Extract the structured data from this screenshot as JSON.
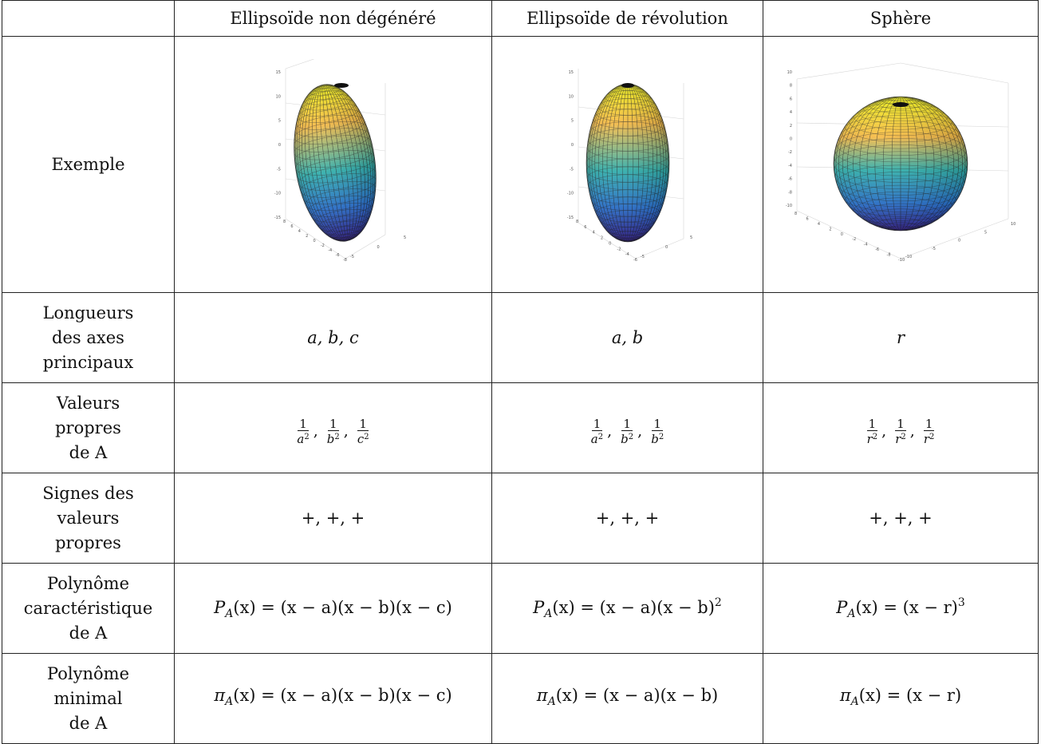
{
  "headers": [
    "",
    "Ellipsoïde non dégénéré",
    "Ellipsoïde de révolution",
    "Sphère"
  ],
  "rows": {
    "exemple": {
      "label": "Exemple"
    },
    "axes": {
      "label": [
        "Longueurs",
        "des axes",
        "principaux"
      ],
      "values": [
        "a, b, c",
        "a, b",
        "r"
      ]
    },
    "valeurs": {
      "label": [
        "Valeurs",
        "propres",
        "de A"
      ],
      "values": [
        {
          "num": [
            "1",
            "1",
            "1"
          ],
          "den_base": [
            "a",
            "b",
            "c"
          ],
          "den_exp": "2"
        },
        {
          "num": [
            "1",
            "1",
            "1"
          ],
          "den_base": [
            "a",
            "b",
            "b"
          ],
          "den_exp": "2"
        },
        {
          "num": [
            "1",
            "1",
            "1"
          ],
          "den_base": [
            "r",
            "r",
            "r"
          ],
          "den_exp": "2"
        }
      ]
    },
    "signes": {
      "label": [
        "Signes des",
        "valeurs",
        "propres"
      ],
      "values": [
        "+, +, +",
        "+, +, +",
        "+, +, +"
      ]
    },
    "caracteristique": {
      "label": [
        "Polynôme",
        "caractéristique",
        "de A"
      ],
      "values": [
        {
          "head": "P",
          "sub": "A",
          "body": "(x) = (x − a)(x − b)(x − c)",
          "sup": ""
        },
        {
          "head": "P",
          "sub": "A",
          "body": "(x) = (x − a)(x − b)",
          "sup": "2"
        },
        {
          "head": "P",
          "sub": "A",
          "body": "(x) = (x − r)",
          "sup": "3"
        }
      ]
    },
    "minimal": {
      "label": [
        "Polynôme",
        "minimal",
        "de A"
      ],
      "values": [
        {
          "head": "π",
          "sub": "A",
          "body": "(x) = (x − a)(x − b)(x − c)"
        },
        {
          "head": "π",
          "sub": "A",
          "body": "(x) = (x − a)(x − b)"
        },
        {
          "head": "π",
          "sub": "A",
          "body": "(x) = (x − r)"
        }
      ]
    }
  },
  "plots": [
    {
      "z_ticks": [
        "15",
        "10",
        "5",
        "0",
        "-5",
        "-10",
        "-15"
      ],
      "x_ticks": [
        "8",
        "6",
        "4",
        "2",
        "0",
        "-2",
        "-4",
        "-6",
        "-8"
      ],
      "y_ticks": [
        "-5",
        "0",
        "5"
      ]
    },
    {
      "z_ticks": [
        "15",
        "10",
        "5",
        "0",
        "-5",
        "-10",
        "-15"
      ],
      "x_ticks": [
        "8",
        "6",
        "4",
        "2",
        "0",
        "-2",
        "-4",
        "-6"
      ],
      "y_ticks": [
        "-5",
        "0",
        "5"
      ]
    },
    {
      "z_ticks": [
        "10",
        "8",
        "6",
        "4",
        "2",
        "0",
        "-2",
        "-4",
        "-6",
        "-8",
        "-10"
      ],
      "x_ticks": [
        "8",
        "6",
        "4",
        "2",
        "0",
        "-2",
        "-4",
        "-6",
        "-8",
        "-10"
      ],
      "y_ticks": [
        "-10",
        "-5",
        "0",
        "5",
        "10"
      ]
    }
  ],
  "colors": {
    "surface_top": "#f9fb0e",
    "surface_mid1": "#f6b73c",
    "surface_mid2": "#29b3b0",
    "surface_mid3": "#2879e0",
    "surface_bottom": "#3e26a8",
    "mesh": "#1a1a1a"
  }
}
